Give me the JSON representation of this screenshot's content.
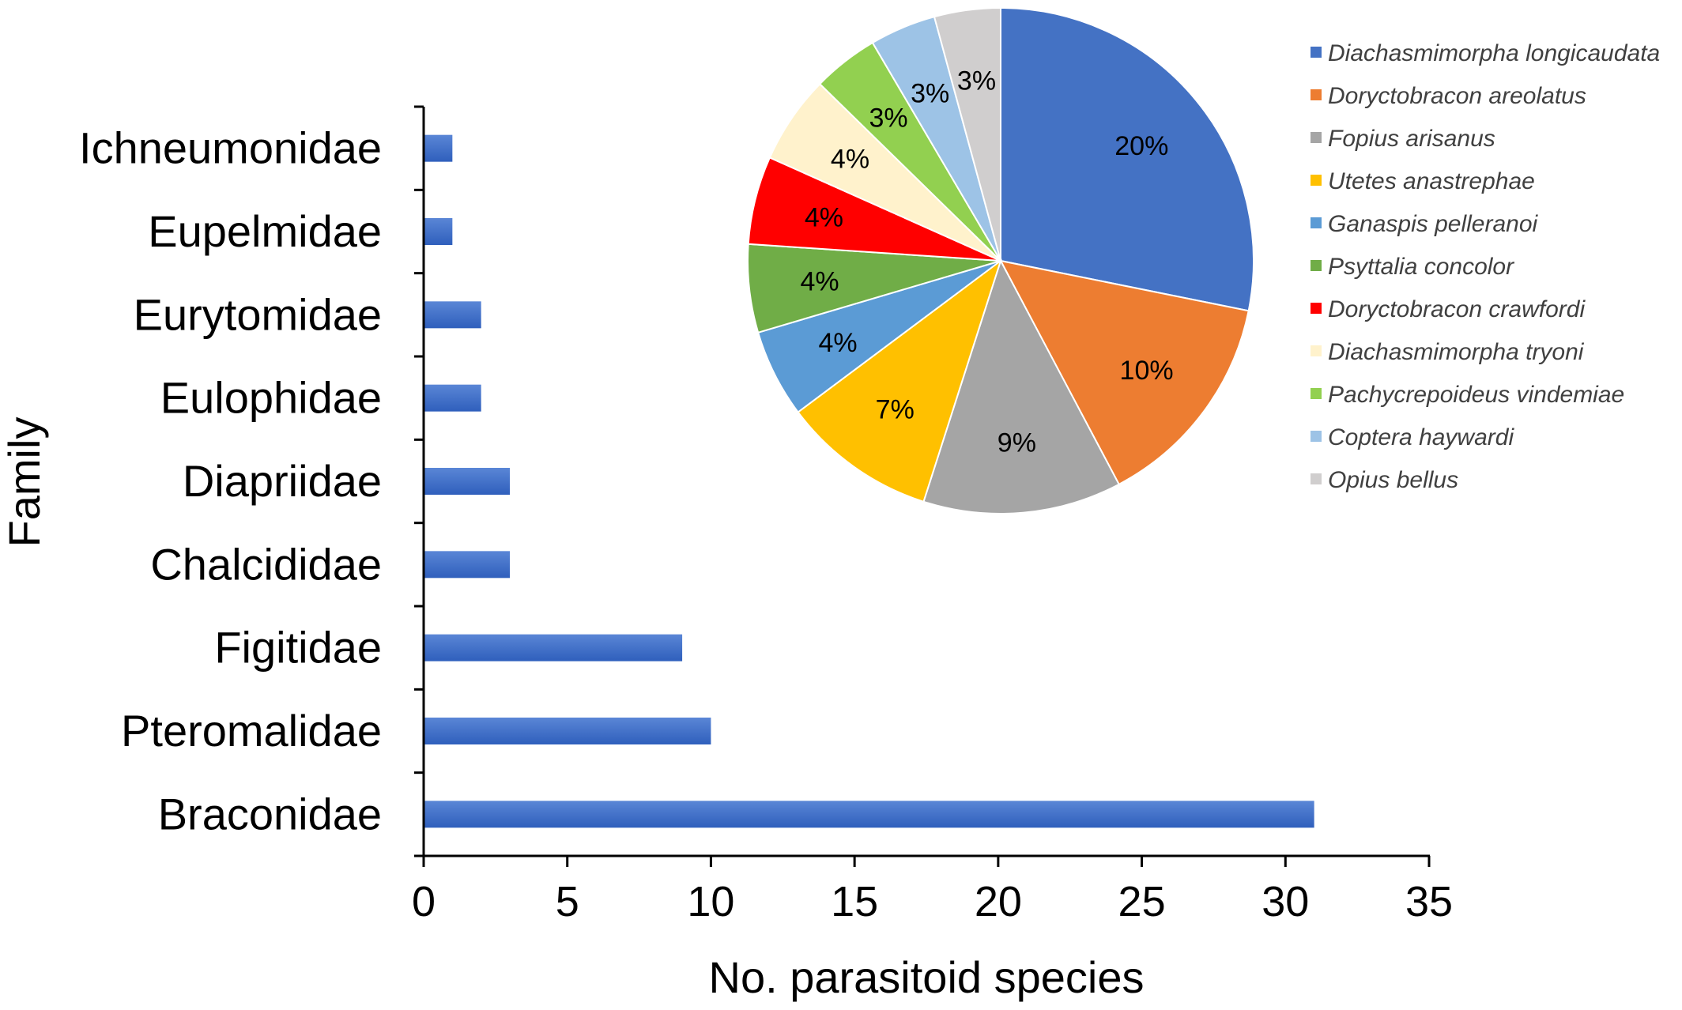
{
  "chart_data": [
    {
      "type": "bar",
      "orientation": "horizontal",
      "categories": [
        "Ichneumonidae",
        "Eupelmidae",
        "Eurytomidae",
        "Eulophidae",
        "Diapriidae",
        "Chalcididae",
        "Figitidae",
        "Pteromalidae",
        "Braconidae"
      ],
      "values": [
        1,
        1,
        2,
        2,
        3,
        3,
        9,
        10,
        31
      ],
      "xlabel": "No. parasitoid species",
      "ylabel": "Family",
      "xlim": [
        0,
        35
      ],
      "xticks": [
        "0",
        "5",
        "10",
        "15",
        "20",
        "25",
        "30",
        "35"
      ],
      "grid": false,
      "bar_color": "#4472C4"
    },
    {
      "type": "pie",
      "labels": [
        "Diachasmimorpha longicaudata",
        "Doryctobracon areolatus",
        "Fopius arisanus",
        "Utetes anastrephae",
        "Ganaspis pelleranoi",
        "Psyttalia concolor",
        "Doryctobracon crawfordi",
        "Diachasmimorpha tryoni",
        "Pachycrepoideus vindemiae",
        "Coptera haywardi",
        "Opius bellus"
      ],
      "values": [
        20,
        10,
        9,
        7,
        4,
        4,
        4,
        4,
        3,
        3,
        3
      ],
      "value_labels": [
        "20%",
        "10%",
        "9%",
        "7%",
        "4%",
        "4%",
        "4%",
        "4%",
        "3%",
        "3%",
        "3%"
      ],
      "colors": [
        "#4472C4",
        "#ED7D31",
        "#A5A5A5",
        "#FFC000",
        "#5B9BD5",
        "#70AD47",
        "#FF0000",
        "#FFF2CC",
        "#92D050",
        "#9DC3E6",
        "#D0CECE"
      ],
      "legend_position": "right"
    }
  ]
}
